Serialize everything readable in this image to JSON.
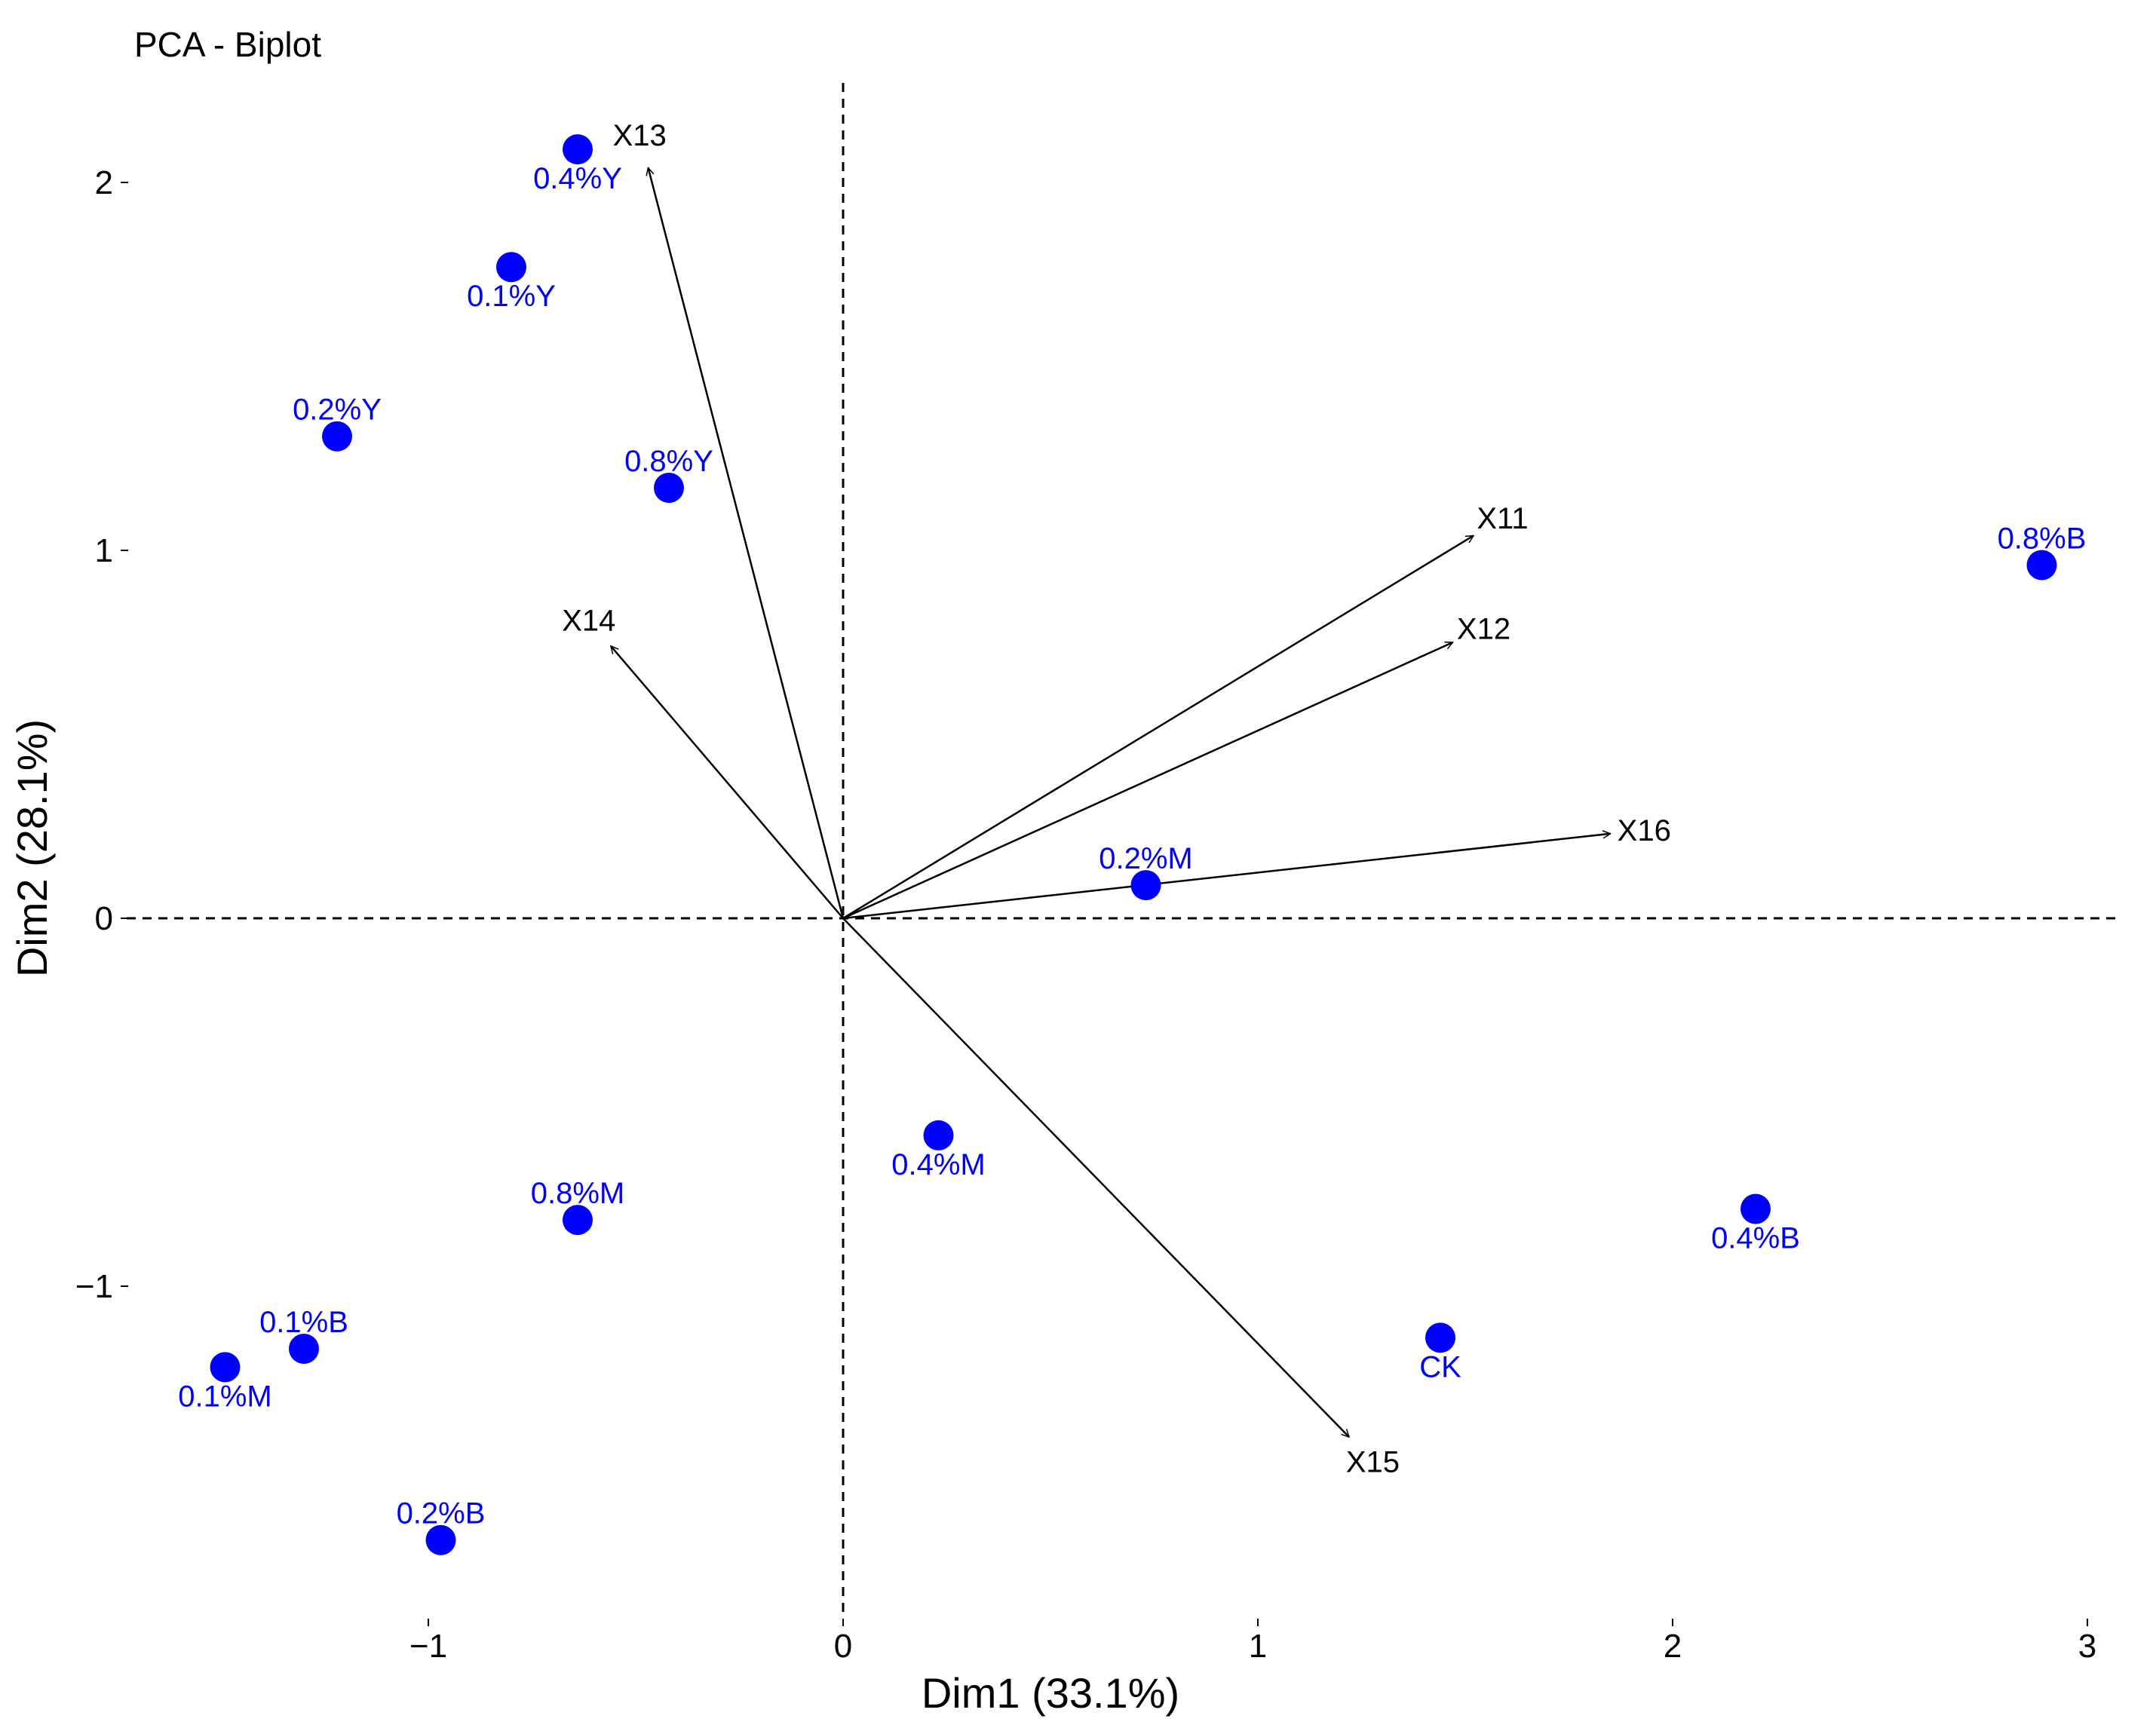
{
  "chart_data": {
    "type": "scatter",
    "title": "PCA - Biplot",
    "xlabel": "Dim1 (33.1%)",
    "ylabel": "Dim2 (28.1%)",
    "xlim": [
      -1.95,
      3.1
    ],
    "ylim": [
      -1.95,
      2.25
    ],
    "x_ticks": [
      {
        "value": -1,
        "label": "−1"
      },
      {
        "value": 0,
        "label": "0"
      },
      {
        "value": 1,
        "label": "1"
      },
      {
        "value": 2,
        "label": "2"
      },
      {
        "value": 3,
        "label": "3"
      }
    ],
    "y_ticks": [
      {
        "value": -1,
        "label": "−1"
      },
      {
        "value": 0,
        "label": "0"
      },
      {
        "value": 1,
        "label": "1"
      },
      {
        "value": 2,
        "label": "2"
      }
    ],
    "grid": false,
    "reference_lines": {
      "x": 0,
      "y": 0,
      "style": "dashed"
    },
    "point_color": "#0000ff",
    "arrow_color": "#000000",
    "points": [
      {
        "label": "0.4%Y",
        "x": -0.64,
        "y": 2.09,
        "label_pos": "below"
      },
      {
        "label": "0.1%Y",
        "x": -0.8,
        "y": 1.77,
        "label_pos": "below"
      },
      {
        "label": "0.2%Y",
        "x": -1.22,
        "y": 1.31,
        "label_pos": "above"
      },
      {
        "label": "0.8%Y",
        "x": -0.42,
        "y": 1.17,
        "label_pos": "above"
      },
      {
        "label": "0.8%B",
        "x": 2.89,
        "y": 0.96,
        "label_pos": "above"
      },
      {
        "label": "0.2%M",
        "x": 0.73,
        "y": 0.09,
        "label_pos": "above"
      },
      {
        "label": "0.4%M",
        "x": 0.23,
        "y": -0.59,
        "label_pos": "below"
      },
      {
        "label": "0.8%M",
        "x": -0.64,
        "y": -0.82,
        "label_pos": "above"
      },
      {
        "label": "0.4%B",
        "x": 2.2,
        "y": -0.79,
        "label_pos": "below"
      },
      {
        "label": "0.1%B",
        "x": -1.3,
        "y": -1.17,
        "label_pos": "above"
      },
      {
        "label": "0.1%M",
        "x": -1.49,
        "y": -1.22,
        "label_pos": "below"
      },
      {
        "label": "CK",
        "x": 1.44,
        "y": -1.14,
        "label_pos": "below"
      },
      {
        "label": "0.2%B",
        "x": -0.97,
        "y": -1.69,
        "label_pos": "above"
      }
    ],
    "variables": [
      {
        "name": "X11",
        "x": 1.52,
        "y": 1.04
      },
      {
        "name": "X12",
        "x": 1.47,
        "y": 0.75
      },
      {
        "name": "X13",
        "x": -0.47,
        "y": 2.04
      },
      {
        "name": "X14",
        "x": -0.56,
        "y": 0.74
      },
      {
        "name": "X15",
        "x": 1.22,
        "y": -1.41
      },
      {
        "name": "X16",
        "x": 1.85,
        "y": 0.23
      }
    ]
  }
}
